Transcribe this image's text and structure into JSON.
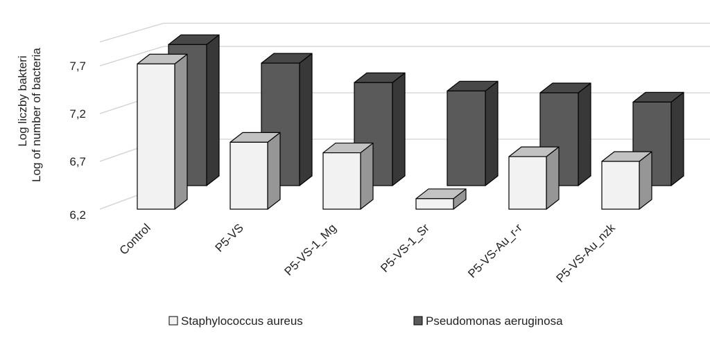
{
  "chart_data": {
    "type": "bar",
    "categories": [
      "Control",
      "P5-VS",
      "P5-VS-1_Mg",
      "P5-VS-1_Sr",
      "P5-VS-Au_r-r",
      "P5-VS-Au_nzk"
    ],
    "series": [
      {
        "name": "Staphylococcus aureus",
        "values": [
          7.72,
          6.9,
          6.79,
          6.31,
          6.75,
          6.7
        ],
        "color": "#f2f2f2"
      },
      {
        "name": "Pseudomonas aeruginosa",
        "values": [
          7.72,
          7.52,
          7.31,
          7.22,
          7.2,
          7.1
        ],
        "color": "#5a5a5a"
      }
    ],
    "ylabel_line1": "Log liczby bakteri",
    "ylabel_line2": "Log of number of bacteria",
    "yticks": [
      "6,2",
      "6,7",
      "7,2",
      "7,7"
    ],
    "ylim": [
      6.2,
      7.95
    ],
    "grid": true,
    "legend_position": "bottom",
    "style": "3d-clustered-column"
  }
}
